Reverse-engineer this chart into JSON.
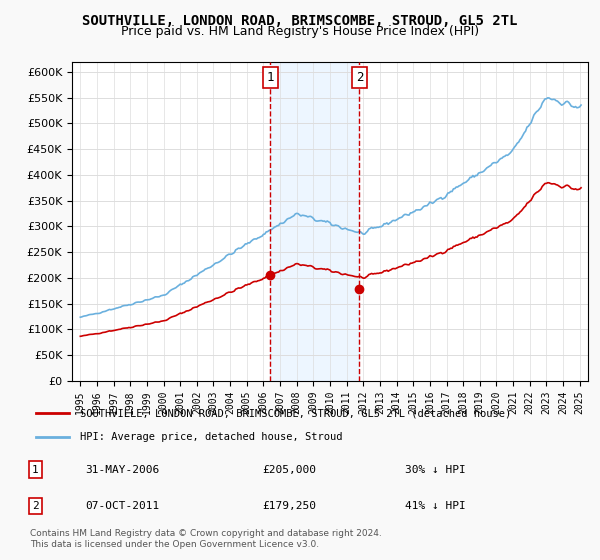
{
  "title": "SOUTHVILLE, LONDON ROAD, BRIMSCOMBE, STROUD, GL5 2TL",
  "subtitle": "Price paid vs. HM Land Registry's House Price Index (HPI)",
  "legend_line1": "SOUTHVILLE, LONDON ROAD, BRIMSCOMBE, STROUD, GL5 2TL (detached house)",
  "legend_line2": "HPI: Average price, detached house, Stroud",
  "annotation1_label": "1",
  "annotation1_date": "31-MAY-2006",
  "annotation1_price": "£205,000",
  "annotation1_hpi": "30% ↓ HPI",
  "annotation1_year": 2006.42,
  "annotation1_value": 205000,
  "annotation2_label": "2",
  "annotation2_date": "07-OCT-2011",
  "annotation2_price": "£179,250",
  "annotation2_hpi": "41% ↓ HPI",
  "annotation2_year": 2011.77,
  "annotation2_value": 179250,
  "hpi_color": "#6ab0de",
  "sale_color": "#cc0000",
  "vline_color": "#cc0000",
  "vline_style": "--",
  "shade_color": "#ddeeff",
  "ylim": [
    0,
    620000
  ],
  "yticks": [
    0,
    50000,
    100000,
    150000,
    200000,
    250000,
    300000,
    350000,
    400000,
    450000,
    500000,
    550000,
    600000
  ],
  "xlim_start": 1994.5,
  "xlim_end": 2025.5,
  "footer": "Contains HM Land Registry data © Crown copyright and database right 2024.\nThis data is licensed under the Open Government Licence v3.0.",
  "background_color": "#f9f9f9",
  "plot_bg": "#ffffff"
}
